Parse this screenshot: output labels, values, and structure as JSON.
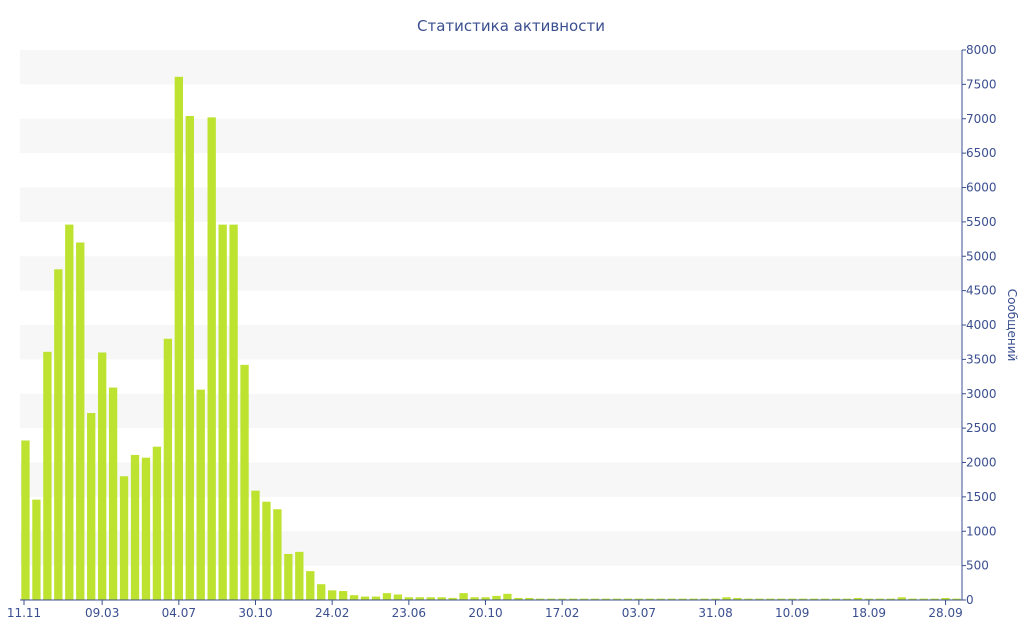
{
  "colors": {
    "bar": "#bde22f",
    "text": "#3b4f8f",
    "band": "#f7f7f7",
    "axis": "#3b4f8f"
  },
  "chart_data": {
    "type": "bar",
    "title": "Статистика активности",
    "ylabel": "Сообщений",
    "ylim": [
      0,
      8000
    ],
    "yticks": [
      0,
      500,
      1000,
      1500,
      2000,
      2500,
      3000,
      3500,
      4000,
      4500,
      5000,
      5500,
      6000,
      6500,
      7000,
      7500,
      8000
    ],
    "y_axis_position": "right",
    "grid": "alternating horizontal bands",
    "x_tick_labels": [
      "11.11",
      "09.03",
      "04.07",
      "30.10",
      "24.02",
      "23.06",
      "20.10",
      "17.02",
      "03.07",
      "31.08",
      "10.09",
      "18.09",
      "28.09"
    ],
    "x_tick_bar_index": [
      0,
      7,
      14,
      21,
      28,
      35,
      42,
      49,
      56,
      63,
      70,
      77,
      84
    ],
    "values": [
      2320,
      1460,
      3610,
      4810,
      5460,
      5200,
      2720,
      3600,
      3090,
      1800,
      2110,
      2070,
      2230,
      3800,
      7610,
      7040,
      3060,
      7020,
      5460,
      5460,
      3420,
      1590,
      1430,
      1320,
      670,
      700,
      420,
      230,
      140,
      130,
      70,
      50,
      50,
      100,
      80,
      40,
      40,
      40,
      40,
      30,
      100,
      40,
      40,
      60,
      90,
      30,
      30,
      20,
      20,
      20,
      20,
      20,
      20,
      20,
      20,
      20,
      20,
      20,
      20,
      20,
      20,
      20,
      20,
      20,
      40,
      30,
      20,
      20,
      20,
      20,
      20,
      20,
      20,
      20,
      20,
      20,
      30,
      20,
      20,
      20,
      40,
      20,
      20,
      20,
      30,
      20
    ]
  }
}
